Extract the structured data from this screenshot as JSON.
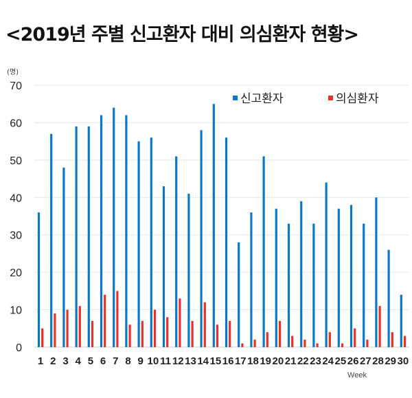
{
  "title": "<2019년 주별 신고환자 대비 의심환자 현황>",
  "chart_data": {
    "type": "bar",
    "title": "<2019년 주별 신고환자 대비 의심환자 현황>",
    "y_unit": "(명)",
    "xlabel": "Week",
    "ylim": [
      0,
      70
    ],
    "yticks": [
      0,
      10,
      20,
      30,
      40,
      50,
      60,
      70
    ],
    "grid": "horizontal",
    "legend_position": "top-right",
    "categories": [
      "1",
      "2",
      "3",
      "4",
      "5",
      "6",
      "7",
      "8",
      "9",
      "10",
      "11",
      "12",
      "13",
      "14",
      "15",
      "16",
      "17",
      "18",
      "19",
      "20",
      "21",
      "22",
      "23",
      "24",
      "25",
      "26",
      "27",
      "28",
      "29",
      "30"
    ],
    "series": [
      {
        "name": "신고환자",
        "color": "#0a78c8",
        "values": [
          36,
          57,
          48,
          59,
          59,
          62,
          64,
          62,
          55,
          56,
          43,
          51,
          41,
          58,
          65,
          56,
          28,
          36,
          51,
          37,
          33,
          39,
          33,
          44,
          37,
          38,
          33,
          40,
          26,
          14
        ]
      },
      {
        "name": "의심환자",
        "color": "#e8312a",
        "values": [
          5,
          9,
          10,
          11,
          7,
          14,
          15,
          6,
          7,
          10,
          8,
          13,
          7,
          12,
          6,
          7,
          1,
          2,
          4,
          7,
          3,
          2,
          1,
          4,
          1,
          5,
          2,
          11,
          4,
          3
        ]
      }
    ]
  }
}
